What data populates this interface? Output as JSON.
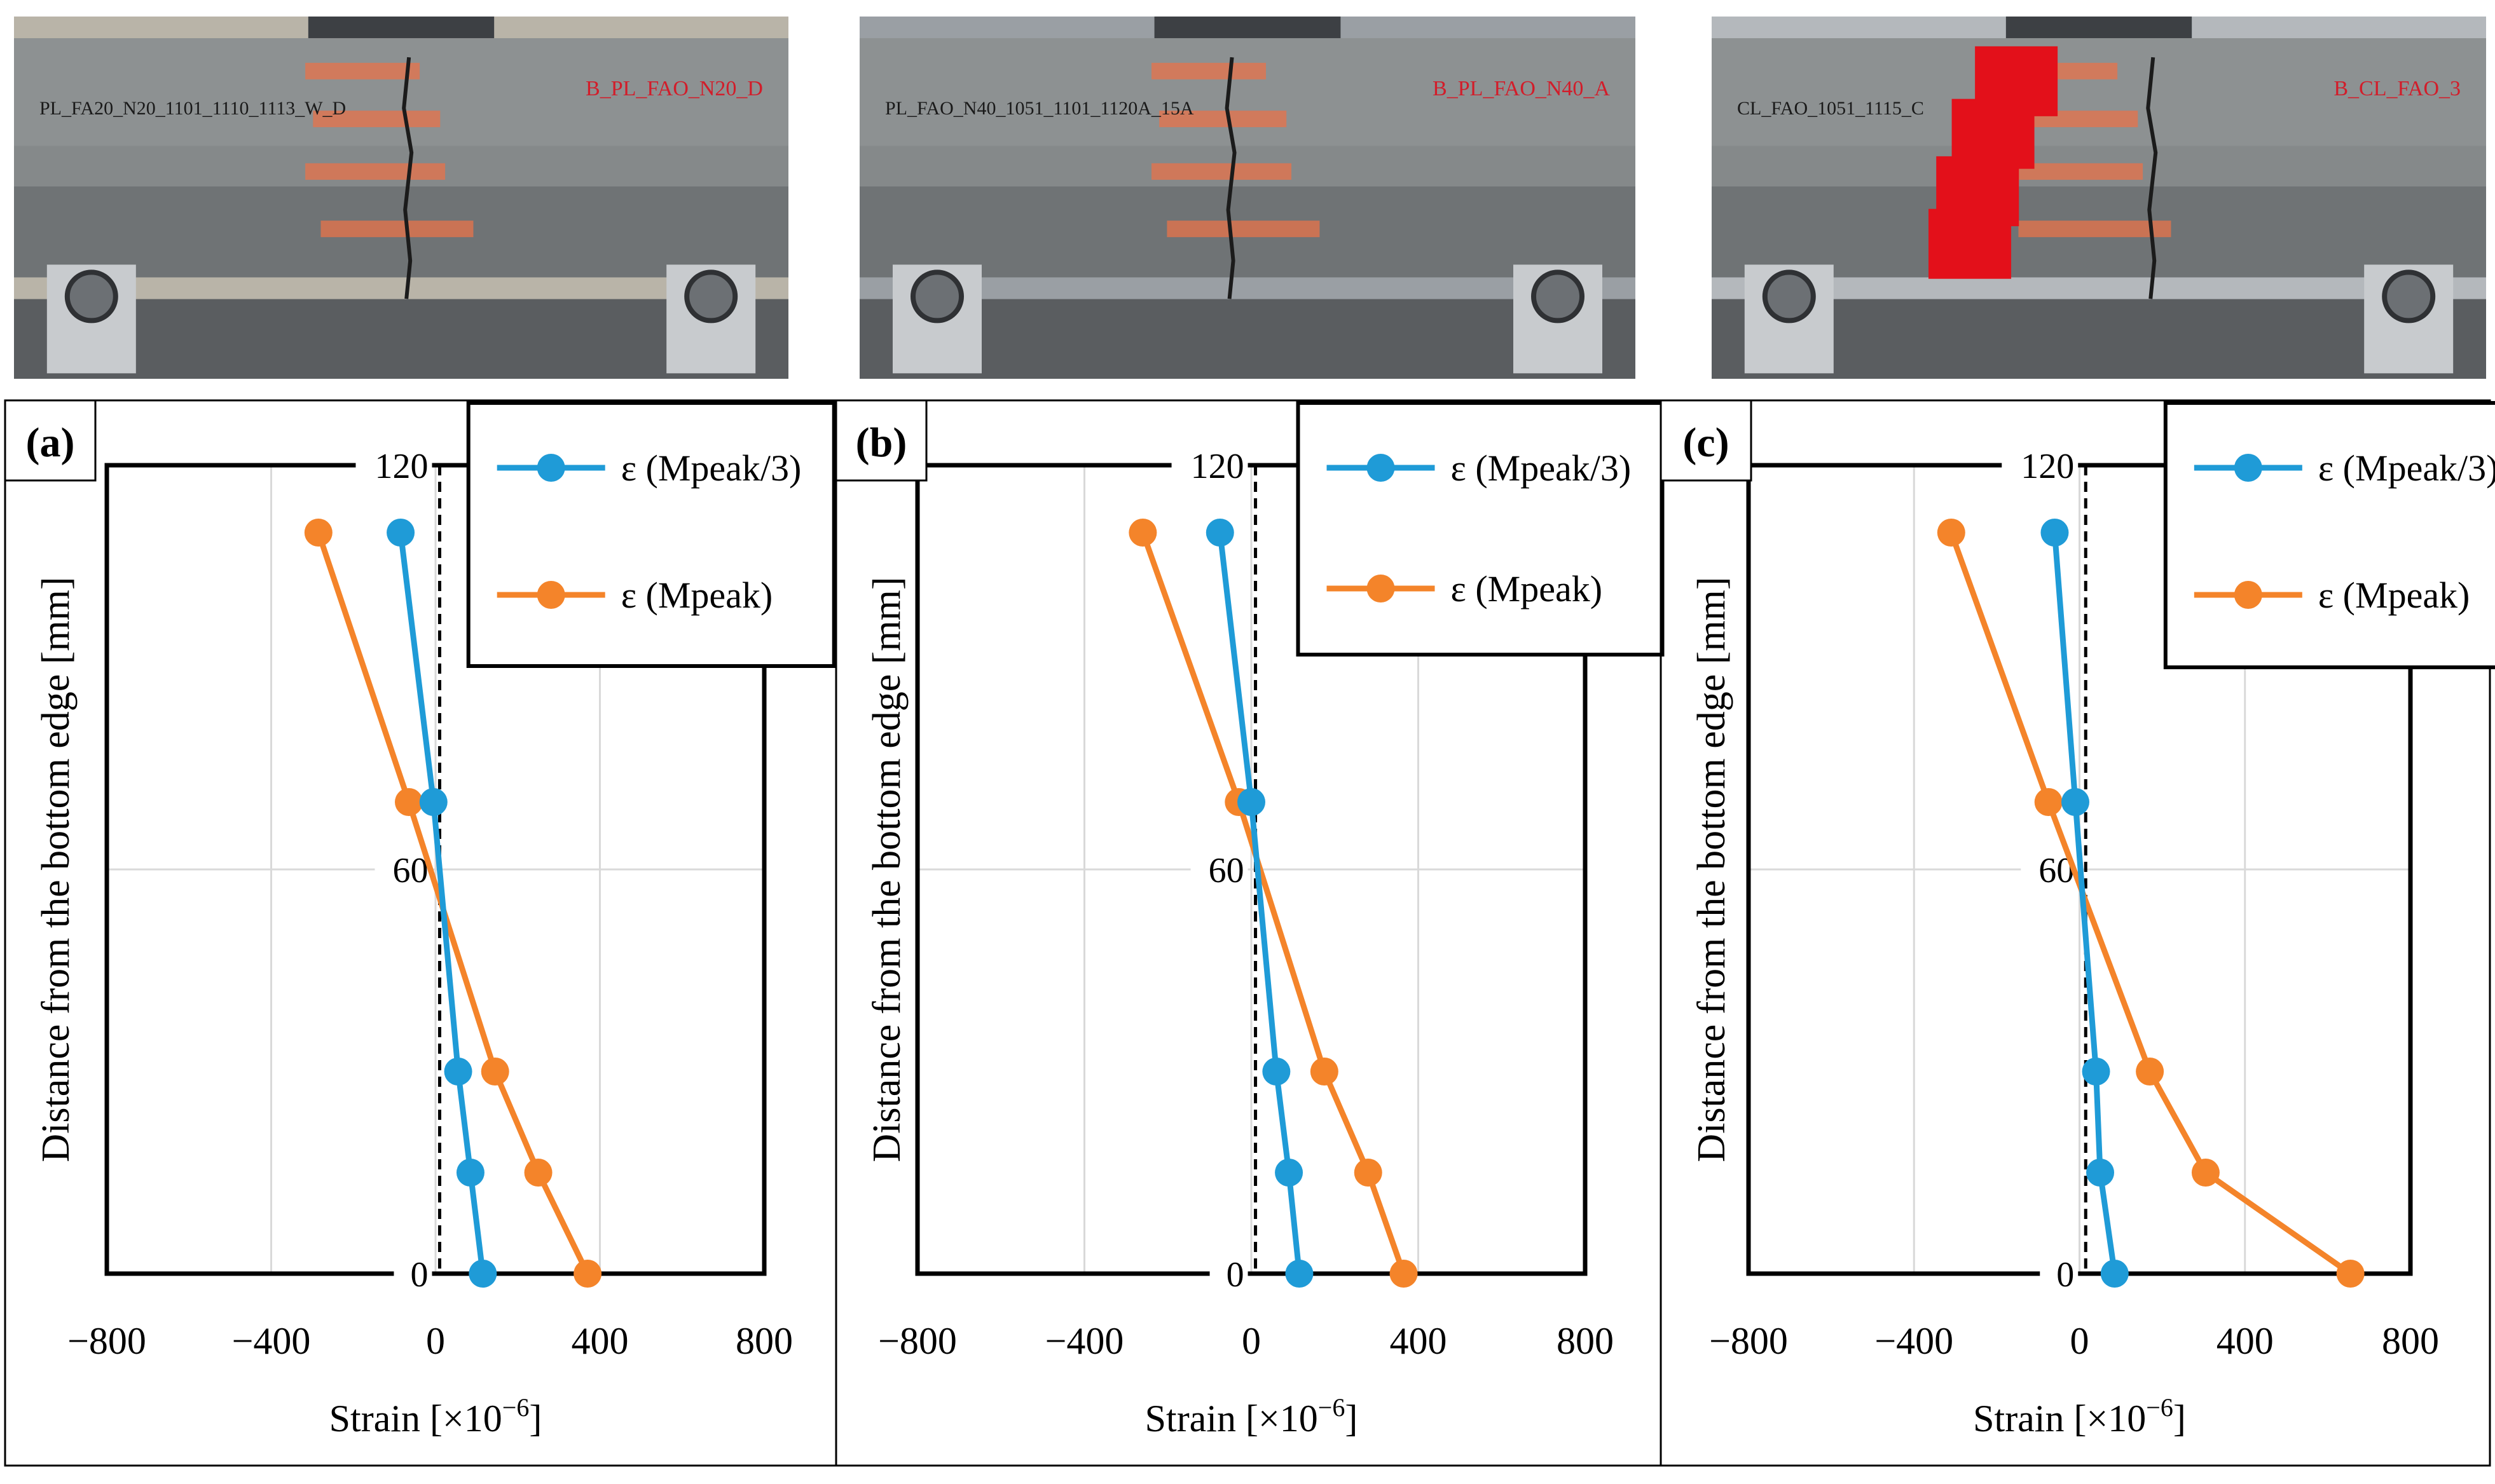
{
  "colors": {
    "series1": "#1f9bd7",
    "series2": "#f4842a",
    "axis": "#000000",
    "grid": "#d9d9d9",
    "panel_border": "#000000",
    "crack_tape": "#e8734a",
    "red_tape": "#e3101a"
  },
  "photos": [
    {
      "specimen_label": "PL_FA20_N20_1101_1110_1113_W_D",
      "marker_label": "B_PL_FAO_N20_D"
    },
    {
      "specimen_label": "PL_FAO_N40_1051_1101_1120A_15A",
      "marker_label": "B_PL_FAO_N40_A"
    },
    {
      "specimen_label": "CL_FAO_1051_1115_C",
      "marker_label": "B_CL_FAO_3"
    }
  ],
  "chart_data": [
    {
      "panel_label": "(a)",
      "type": "line",
      "xlabel_main": "Strain [×10",
      "xlabel_exp": "−6",
      "xlabel_end": "]",
      "ylabel": "Distance from the bottom edge [mm]",
      "xlim": [
        -800,
        800
      ],
      "ylim": [
        0,
        120
      ],
      "x_ticks": [
        -800,
        -400,
        0,
        400,
        800
      ],
      "x_tick_labels": [
        "−800",
        "−400",
        "0",
        "400",
        "800"
      ],
      "y_ticks": [
        0,
        60,
        120
      ],
      "y_tick_labels": [
        "0",
        "60",
        "120"
      ],
      "neutral_line_x": 10,
      "series": [
        {
          "name": "ε (Mpeak/3)",
          "points": [
            [
              -85,
              110
            ],
            [
              -5,
              70
            ],
            [
              55,
              30
            ],
            [
              85,
              15
            ],
            [
              115,
              0
            ]
          ]
        },
        {
          "name": "ε (Mpeak)",
          "points": [
            [
              -285,
              110
            ],
            [
              -65,
              70
            ],
            [
              145,
              30
            ],
            [
              250,
              15
            ],
            [
              370,
              0
            ]
          ]
        }
      ]
    },
    {
      "panel_label": "(b)",
      "type": "line",
      "xlabel_main": "Strain [×10",
      "xlabel_exp": "−6",
      "xlabel_end": "]",
      "ylabel": "Distance from the bottom edge [mm]",
      "xlim": [
        -800,
        800
      ],
      "ylim": [
        0,
        120
      ],
      "x_ticks": [
        -800,
        -400,
        0,
        400,
        800
      ],
      "x_tick_labels": [
        "−800",
        "−400",
        "0",
        "400",
        "800"
      ],
      "y_ticks": [
        0,
        60,
        120
      ],
      "y_tick_labels": [
        "0",
        "60",
        "120"
      ],
      "neutral_line_x": 10,
      "series": [
        {
          "name": "ε (Mpeak/3)",
          "points": [
            [
              -75,
              110
            ],
            [
              0,
              70
            ],
            [
              60,
              30
            ],
            [
              90,
              15
            ],
            [
              115,
              0
            ]
          ]
        },
        {
          "name": "ε (Mpeak)",
          "points": [
            [
              -260,
              110
            ],
            [
              -30,
              70
            ],
            [
              175,
              30
            ],
            [
              280,
              15
            ],
            [
              365,
              0
            ]
          ]
        }
      ]
    },
    {
      "panel_label": "(c)",
      "type": "line",
      "xlabel_main": "Strain [×10",
      "xlabel_exp": "−6",
      "xlabel_end": "]",
      "ylabel": "Distance from the bottom edge [mm]",
      "xlim": [
        -800,
        800
      ],
      "ylim": [
        0,
        120
      ],
      "x_ticks": [
        -800,
        -400,
        0,
        400,
        800
      ],
      "x_tick_labels": [
        "−800",
        "−400",
        "0",
        "400",
        "800"
      ],
      "y_ticks": [
        0,
        60,
        120
      ],
      "y_tick_labels": [
        "0",
        "60",
        "120"
      ],
      "neutral_line_x": 15,
      "series": [
        {
          "name": "ε (Mpeak/3)",
          "points": [
            [
              -60,
              110
            ],
            [
              -10,
              70
            ],
            [
              40,
              30
            ],
            [
              50,
              15
            ],
            [
              85,
              0
            ]
          ]
        },
        {
          "name": "ε (Mpeak)",
          "points": [
            [
              -310,
              110
            ],
            [
              -75,
              70
            ],
            [
              170,
              30
            ],
            [
              305,
              15
            ],
            [
              655,
              0
            ]
          ]
        }
      ]
    }
  ]
}
